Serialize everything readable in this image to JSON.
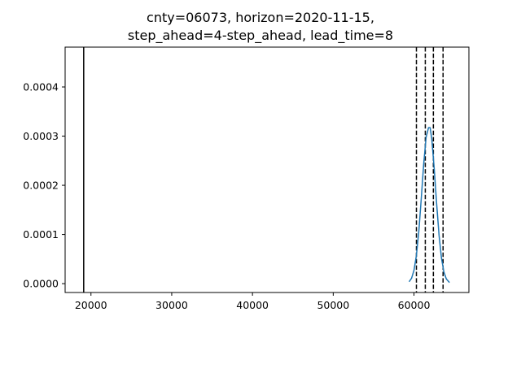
{
  "chart_data": {
    "type": "line",
    "title": [
      "cnty=06073, horizon=2020-11-15,",
      "step_ahead=4-step_ahead, lead_time=8"
    ],
    "xlabel": "",
    "ylabel": "",
    "xlim": [
      16800,
      66800
    ],
    "ylim": [
      -1.8e-05,
      0.000481
    ],
    "xticks": [
      20000,
      30000,
      40000,
      50000,
      60000
    ],
    "xtick_labels": [
      "20000",
      "30000",
      "40000",
      "50000",
      "60000"
    ],
    "yticks": [
      0,
      0.0001,
      0.0002,
      0.0003,
      0.0004
    ],
    "ytick_labels": [
      "0.0000",
      "0.0001",
      "0.0002",
      "0.0003",
      "0.0004"
    ],
    "grid": false,
    "legend": "none",
    "series": [
      {
        "color": "#1f77b4",
        "x": [
          59400,
          59700,
          60000,
          60300,
          60600,
          60900,
          61200,
          61500,
          61800,
          62000,
          62200,
          62500,
          62800,
          63100,
          63400,
          63700,
          64000,
          64400
        ],
        "y": [
          3.9e-06,
          1.1e-05,
          2.7e-05,
          5.76e-05,
          0.0001069,
          0.0001727,
          0.0002429,
          0.0002974,
          0.0003172,
          0.0003172,
          0.0002947,
          0.0002352,
          0.0001635,
          9.9e-05,
          5.22e-05,
          2.4e-05,
          9.6e-06,
          2.3e-06
        ]
      }
    ],
    "vlines": [
      {
        "x": 19100,
        "color": "#000000",
        "style": "solid"
      },
      {
        "x": 60300,
        "color": "#000000",
        "style": "dashed"
      },
      {
        "x": 61400,
        "color": "#000000",
        "style": "dashed"
      },
      {
        "x": 62400,
        "color": "#000000",
        "style": "dashed"
      },
      {
        "x": 63600,
        "color": "#000000",
        "style": "dashed"
      }
    ]
  }
}
